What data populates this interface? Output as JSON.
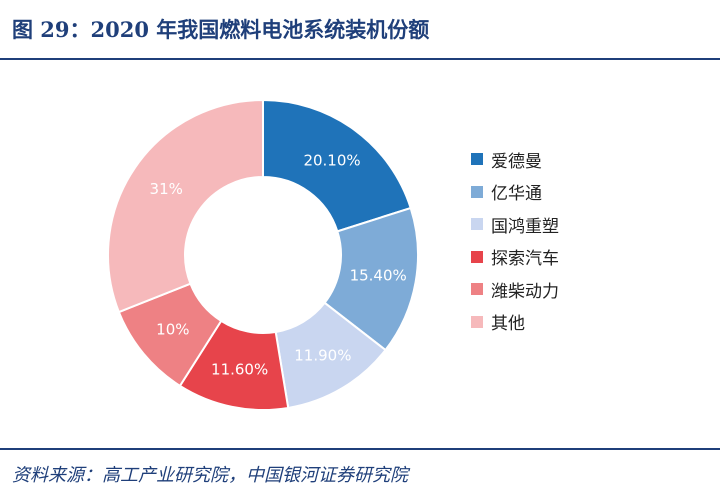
{
  "title": "图 29：2020 年我国燃料电池系统装机份额",
  "source": "资料来源：高工产业研究院，中国银河证券研究院",
  "chart_data": {
    "type": "pie",
    "variant": "donut",
    "title": "",
    "legend_position": "right",
    "slices": [
      {
        "label": "爱德曼",
        "value": 20.1,
        "display": "20.10%",
        "color": "#1f73b9"
      },
      {
        "label": "亿华通",
        "value": 15.4,
        "display": "15.40%",
        "color": "#7eabd7"
      },
      {
        "label": "国鸿重塑",
        "value": 11.9,
        "display": "11.90%",
        "color": "#c9d6f0"
      },
      {
        "label": "探索汽车",
        "value": 11.6,
        "display": "11.60%",
        "color": "#e7444b"
      },
      {
        "label": "潍柴动力",
        "value": 10,
        "display": "10%",
        "color": "#ee8184"
      },
      {
        "label": "其他",
        "value": 31,
        "display": "31%",
        "color": "#f6b9bb"
      }
    ]
  }
}
